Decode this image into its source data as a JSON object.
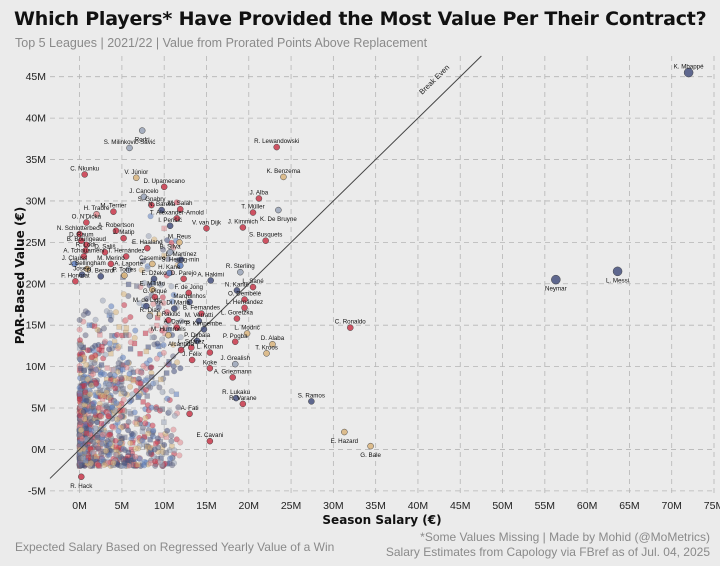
{
  "header": {
    "title": "Which Players* Have Provided the Most Value Per Their Contract?",
    "subtitle": "Top 5 Leagues | 2021/22 | Value from Prorated Points Above Replacement"
  },
  "footer": {
    "left": "Expected Salary Based on Regressed Yearly Value of a Win",
    "right_line1": "*Some Values Missing | Made by Mohid (@MoMetrics)",
    "right_line2": "Salary Estimates from Capology via FBref as of Jul. 04, 2025"
  },
  "colors": {
    "background": "#ebebeb",
    "grid": "#b5b5b5",
    "point_palette": [
      "#c9374a",
      "#45507e",
      "#5e7fc0",
      "#d9b47c",
      "#9aa4b8",
      "#e08a8f",
      "#6b6f8a"
    ]
  },
  "chart_data": {
    "type": "scatter",
    "title": "Which Players* Have Provided the Most Value Per Their Contract?",
    "xlabel": "Season Salary (€)",
    "ylabel": "PAR-Based Value (€)",
    "xlim": [
      -3.5,
      75
    ],
    "ylim": [
      -5.5,
      47.5
    ],
    "x_ticks": [
      0,
      5,
      10,
      15,
      20,
      25,
      30,
      35,
      40,
      45,
      50,
      55,
      60,
      65,
      70,
      75
    ],
    "y_ticks": [
      -5,
      0,
      5,
      10,
      15,
      20,
      25,
      30,
      35,
      40,
      45
    ],
    "x_tick_labels": [
      "0M",
      "5M",
      "10M",
      "15M",
      "20M",
      "25M",
      "30M",
      "35M",
      "40M",
      "45M",
      "50M",
      "55M",
      "60M",
      "65M",
      "70M",
      "75M"
    ],
    "y_tick_labels": [
      "-5M",
      "0M",
      "5M",
      "10M",
      "15M",
      "20M",
      "25M",
      "30M",
      "35M",
      "40M",
      "45M"
    ],
    "grid": true,
    "reference_line": {
      "label": "Break Even",
      "from": [
        -3.5,
        -3.5
      ],
      "to": [
        47.5,
        47.5
      ]
    },
    "labeled_points": [
      {
        "name": "K. Mbappé",
        "x": 72.0,
        "y": 45.5,
        "color": "#45507e",
        "label_pos": "above"
      },
      {
        "name": "L. Messi",
        "x": 63.6,
        "y": 21.5,
        "color": "#45507e",
        "label_pos": "below"
      },
      {
        "name": "Neymar",
        "x": 56.3,
        "y": 20.5,
        "color": "#45507e",
        "label_pos": "below"
      },
      {
        "name": "Rodri",
        "x": 7.4,
        "y": 38.5,
        "color": "#9aa4b8",
        "label_pos": "below"
      },
      {
        "name": "S. Milinković-Savić",
        "x": 5.9,
        "y": 36.4,
        "color": "#9aa4b8",
        "label_pos": "above"
      },
      {
        "name": "R. Lewandowski",
        "x": 23.3,
        "y": 36.5,
        "color": "#c9374a",
        "label_pos": "above"
      },
      {
        "name": "C. Nkunku",
        "x": 0.6,
        "y": 33.2,
        "color": "#c9374a",
        "label_pos": "above"
      },
      {
        "name": "V. Júnior",
        "x": 6.7,
        "y": 32.8,
        "color": "#d9b47c",
        "label_pos": "above"
      },
      {
        "name": "K. Benzema",
        "x": 24.1,
        "y": 32.9,
        "color": "#d9b47c",
        "label_pos": "above"
      },
      {
        "name": "D. Upamecano",
        "x": 10.0,
        "y": 31.7,
        "color": "#c9374a",
        "label_pos": "above"
      },
      {
        "name": "J. Cancelo",
        "x": 7.6,
        "y": 30.5,
        "color": "#9aa4b8",
        "label_pos": "above"
      },
      {
        "name": "S. Gnabry",
        "x": 8.5,
        "y": 29.5,
        "color": "#c9374a",
        "label_pos": "above"
      },
      {
        "name": "M. Salah",
        "x": 11.9,
        "y": 29.0,
        "color": "#c9374a",
        "label_pos": "above"
      },
      {
        "name": "J. Alba",
        "x": 21.2,
        "y": 30.3,
        "color": "#c9374a",
        "label_pos": "above"
      },
      {
        "name": "H. Traoré",
        "x": 2.0,
        "y": 28.4,
        "color": "#e08a8f",
        "label_pos": "above"
      },
      {
        "name": "M. Terrier",
        "x": 4.0,
        "y": 28.7,
        "color": "#c9374a",
        "label_pos": "above"
      },
      {
        "name": "N. Barella",
        "x": 9.7,
        "y": 28.9,
        "color": "#45507e",
        "label_pos": "above"
      },
      {
        "name": "T. Müller",
        "x": 20.5,
        "y": 28.6,
        "color": "#c9374a",
        "label_pos": "above"
      },
      {
        "name": "K. De Bruyne",
        "x": 23.5,
        "y": 28.9,
        "color": "#9aa4b8",
        "label_pos": "below"
      },
      {
        "name": "O. N'Dicka",
        "x": 0.8,
        "y": 27.4,
        "color": "#c9374a",
        "label_pos": "above"
      },
      {
        "name": "T. Alexander-Arnold",
        "x": 11.5,
        "y": 27.9,
        "color": "#c9374a",
        "label_pos": "above"
      },
      {
        "name": "A. Robertson",
        "x": 4.3,
        "y": 26.4,
        "color": "#c9374a",
        "label_pos": "above"
      },
      {
        "name": "I. Perišić",
        "x": 10.7,
        "y": 27.0,
        "color": "#45507e",
        "label_pos": "above"
      },
      {
        "name": "J. Kimmich",
        "x": 19.3,
        "y": 26.8,
        "color": "#c9374a",
        "label_pos": "above"
      },
      {
        "name": "V. van Dijk",
        "x": 15.0,
        "y": 26.7,
        "color": "#c9374a",
        "label_pos": "above"
      },
      {
        "name": "N. Schlotterbeck",
        "x": 0.0,
        "y": 26.0,
        "color": "#c9374a",
        "label_pos": "above"
      },
      {
        "name": "D. Raum",
        "x": 0.2,
        "y": 25.2,
        "color": "#c9374a",
        "label_pos": "above"
      },
      {
        "name": "J. Matip",
        "x": 5.2,
        "y": 25.5,
        "color": "#c9374a",
        "label_pos": "above"
      },
      {
        "name": "M. Reus",
        "x": 11.8,
        "y": 25.0,
        "color": "#d9b47c",
        "label_pos": "above"
      },
      {
        "name": "S. Busquets",
        "x": 22.0,
        "y": 25.2,
        "color": "#c9374a",
        "label_pos": "above"
      },
      {
        "name": "B. Bourigeaud",
        "x": 0.8,
        "y": 24.7,
        "color": "#c9374a",
        "label_pos": "above"
      },
      {
        "name": "E. Haaland",
        "x": 8.0,
        "y": 24.3,
        "color": "#c9374a",
        "label_pos": "above"
      },
      {
        "name": "R. Lodi",
        "x": 0.7,
        "y": 24.0,
        "color": "#c9374a",
        "label_pos": "above"
      },
      {
        "name": "D. Sališ",
        "x": 3.0,
        "y": 23.8,
        "color": "#c9374a",
        "label_pos": "above"
      },
      {
        "name": "B. Silva",
        "x": 10.7,
        "y": 23.8,
        "color": "#9aa4b8",
        "label_pos": "above"
      },
      {
        "name": "A. Tchouaméni",
        "x": 0.5,
        "y": 23.3,
        "color": "#c9374a",
        "label_pos": "above"
      },
      {
        "name": "T. Hernández",
        "x": 5.5,
        "y": 23.3,
        "color": "#c9374a",
        "label_pos": "above"
      },
      {
        "name": "L. Martínez",
        "x": 12.0,
        "y": 22.9,
        "color": "#45507e",
        "label_pos": "above"
      },
      {
        "name": "J. Clauss",
        "x": -0.6,
        "y": 22.4,
        "color": "#5e7fc0",
        "label_pos": "above"
      },
      {
        "name": "M. Merino",
        "x": 3.7,
        "y": 22.4,
        "color": "#c9374a",
        "label_pos": "above"
      },
      {
        "name": "Casemiro",
        "x": 8.6,
        "y": 22.4,
        "color": "#d9b47c",
        "label_pos": "above"
      },
      {
        "name": "S. Heung-min",
        "x": 11.9,
        "y": 22.2,
        "color": "#5e7fc0",
        "label_pos": "above"
      },
      {
        "name": "J. Bellingham",
        "x": 0.9,
        "y": 21.8,
        "color": "#d9b47c",
        "label_pos": "above"
      },
      {
        "name": "A. Laporte",
        "x": 5.8,
        "y": 21.7,
        "color": "#9aa4b8",
        "label_pos": "above"
      },
      {
        "name": "H. Kane",
        "x": 10.6,
        "y": 21.3,
        "color": "#5e7fc0",
        "label_pos": "above"
      },
      {
        "name": "R. Sterling",
        "x": 19.0,
        "y": 21.4,
        "color": "#9aa4b8",
        "label_pos": "above"
      },
      {
        "name": "Joselu",
        "x": 0.3,
        "y": 21.1,
        "color": "#45507e",
        "label_pos": "above"
      },
      {
        "name": "D. Berardi",
        "x": 2.5,
        "y": 20.9,
        "color": "#45507e",
        "label_pos": "above"
      },
      {
        "name": "P. Torres",
        "x": 5.3,
        "y": 21.0,
        "color": "#d9b47c",
        "label_pos": "above"
      },
      {
        "name": "E. Džeko",
        "x": 8.8,
        "y": 20.6,
        "color": "#45507e",
        "label_pos": "above"
      },
      {
        "name": "D. Parejo",
        "x": 12.3,
        "y": 20.6,
        "color": "#c9374a",
        "label_pos": "above"
      },
      {
        "name": "A. Hakimi",
        "x": 15.5,
        "y": 20.4,
        "color": "#45507e",
        "label_pos": "above"
      },
      {
        "name": "F. Honorat",
        "x": -0.5,
        "y": 20.3,
        "color": "#c9374a",
        "label_pos": "above"
      },
      {
        "name": "L. Sané",
        "x": 20.5,
        "y": 19.6,
        "color": "#c9374a",
        "label_pos": "above"
      },
      {
        "name": "E. Militão",
        "x": 8.6,
        "y": 19.3,
        "color": "#d9b47c",
        "label_pos": "above"
      },
      {
        "name": "N. Kanté",
        "x": 18.6,
        "y": 19.2,
        "color": "#45507e",
        "label_pos": "above"
      },
      {
        "name": "F. de Jong",
        "x": 12.9,
        "y": 18.9,
        "color": "#c9374a",
        "label_pos": "above"
      },
      {
        "name": "O. Dembélé",
        "x": 19.5,
        "y": 18.1,
        "color": "#c9374a",
        "label_pos": "above"
      },
      {
        "name": "G. Piqué",
        "x": 8.9,
        "y": 18.4,
        "color": "#c9374a",
        "label_pos": "above"
      },
      {
        "name": "Marquinhos",
        "x": 13.0,
        "y": 17.8,
        "color": "#45507e",
        "label_pos": "above"
      },
      {
        "name": "M. de Ligt",
        "x": 7.9,
        "y": 17.3,
        "color": "#45507e",
        "label_pos": "above"
      },
      {
        "name": "L. Hernández",
        "x": 19.5,
        "y": 17.1,
        "color": "#c9374a",
        "label_pos": "above"
      },
      {
        "name": "A. Di María",
        "x": 11.2,
        "y": 17.0,
        "color": "#45507e",
        "label_pos": "above"
      },
      {
        "name": "B. Fernandes",
        "x": 14.4,
        "y": 16.4,
        "color": "#c9374a",
        "label_pos": "above"
      },
      {
        "name": "R. Dias",
        "x": 8.3,
        "y": 16.1,
        "color": "#9aa4b8",
        "label_pos": "above"
      },
      {
        "name": "I. Rakitić",
        "x": 10.5,
        "y": 15.6,
        "color": "#c9374a",
        "label_pos": "above"
      },
      {
        "name": "M. Verratti",
        "x": 14.1,
        "y": 15.5,
        "color": "#45507e",
        "label_pos": "above"
      },
      {
        "name": "L. Goretzka",
        "x": 18.6,
        "y": 15.8,
        "color": "#c9374a",
        "label_pos": "above"
      },
      {
        "name": "C. Ronaldo",
        "x": 32.0,
        "y": 14.7,
        "color": "#c9374a",
        "label_pos": "above"
      },
      {
        "name": "A. Davies",
        "x": 11.5,
        "y": 14.7,
        "color": "#c9374a",
        "label_pos": "above"
      },
      {
        "name": "P. Kimpembe",
        "x": 14.7,
        "y": 14.5,
        "color": "#45507e",
        "label_pos": "above"
      },
      {
        "name": "L. Modrić",
        "x": 19.8,
        "y": 14.0,
        "color": "#d9b47c",
        "label_pos": "above"
      },
      {
        "name": "M. Hummels",
        "x": 10.5,
        "y": 13.8,
        "color": "#d9b47c",
        "label_pos": "above"
      },
      {
        "name": "P. Dybala",
        "x": 13.9,
        "y": 13.1,
        "color": "#45507e",
        "label_pos": "above"
      },
      {
        "name": "P. Pogba",
        "x": 18.4,
        "y": 13.0,
        "color": "#c9374a",
        "label_pos": "above"
      },
      {
        "name": "D. Alaba",
        "x": 22.8,
        "y": 12.7,
        "color": "#d9b47c",
        "label_pos": "above"
      },
      {
        "name": "L. Suárez",
        "x": 13.2,
        "y": 12.3,
        "color": "#c9374a",
        "label_pos": "above"
      },
      {
        "name": "Alcántara",
        "x": 12.0,
        "y": 12.0,
        "color": "#c9374a",
        "label_pos": "above"
      },
      {
        "name": "L. Koman",
        "x": 15.4,
        "y": 11.7,
        "color": "#c9374a",
        "label_pos": "above"
      },
      {
        "name": "T. Kroos",
        "x": 22.1,
        "y": 11.6,
        "color": "#d9b47c",
        "label_pos": "above"
      },
      {
        "name": "J. Félix",
        "x": 13.3,
        "y": 10.8,
        "color": "#c9374a",
        "label_pos": "above"
      },
      {
        "name": "J. Grealish",
        "x": 18.4,
        "y": 10.3,
        "color": "#9aa4b8",
        "label_pos": "above"
      },
      {
        "name": "Koke",
        "x": 15.4,
        "y": 9.8,
        "color": "#c9374a",
        "label_pos": "above"
      },
      {
        "name": "A. Griezmann",
        "x": 18.1,
        "y": 8.7,
        "color": "#c9374a",
        "label_pos": "above"
      },
      {
        "name": "R. Lukaku",
        "x": 18.5,
        "y": 6.2,
        "color": "#45507e",
        "label_pos": "above"
      },
      {
        "name": "S. Ramos",
        "x": 27.4,
        "y": 5.8,
        "color": "#45507e",
        "label_pos": "above"
      },
      {
        "name": "R. Varane",
        "x": 19.3,
        "y": 5.5,
        "color": "#c9374a",
        "label_pos": "above"
      },
      {
        "name": "A. Fati",
        "x": 13.0,
        "y": 4.3,
        "color": "#c9374a",
        "label_pos": "above"
      },
      {
        "name": "E. Cavani",
        "x": 15.4,
        "y": 1.0,
        "color": "#c9374a",
        "label_pos": "above"
      },
      {
        "name": "E. Hazard",
        "x": 31.3,
        "y": 2.1,
        "color": "#d9b47c",
        "label_pos": "below"
      },
      {
        "name": "G. Bale",
        "x": 34.4,
        "y": 0.4,
        "color": "#d9b47c",
        "label_pos": "below"
      },
      {
        "name": "R. Hack",
        "x": 0.2,
        "y": -3.3,
        "color": "#c9374a",
        "label_pos": "below"
      }
    ]
  }
}
